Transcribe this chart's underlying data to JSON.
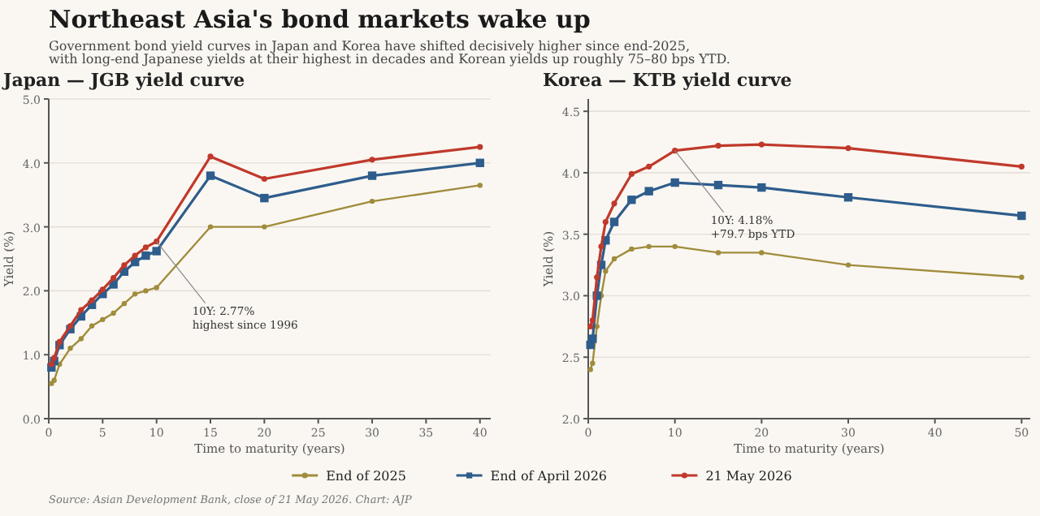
{
  "chart_data": [
    {
      "type": "other",
      "title": "Northeast Asia's bond markets wake up",
      "subtitle": "Government bond yield curves in Japan and Korea have shifted decisively higher since end-2025,\nwith long-end Japanese yields at their highest in decades and Korean yields up roughly 75–80 bps YTD.",
      "annotations": [
        "Source: Asian Development Bank, close of 21 May 2026.   Chart: AJP"
      ]
    },
    {
      "type": "line",
      "title": "Japan — JGB yield curve",
      "xlabel": "Time to maturity (years)",
      "ylabel": "Yield (%)",
      "x": [
        0.25,
        0.5,
        1,
        2,
        3,
        4,
        5,
        6,
        7,
        8,
        9,
        10,
        15,
        20,
        30,
        40
      ],
      "xlim": [
        0,
        41
      ],
      "xticks": [
        0,
        5,
        10,
        15,
        20,
        25,
        30,
        35,
        40
      ],
      "ylim": [
        0,
        5
      ],
      "yticks": [
        {
          "value": 0,
          "label": "0.0"
        },
        {
          "value": 1,
          "label": "1.0"
        },
        {
          "value": 2,
          "label": "2.0"
        },
        {
          "value": 3,
          "label": "3.0"
        },
        {
          "value": 4,
          "label": "4.0"
        },
        {
          "value": 5,
          "label": "5.0"
        }
      ],
      "grid": "y",
      "legend": "bottom",
      "annotations": [
        {
          "text": "10Y: 2.77%\nhighest since 1996",
          "x": 10,
          "y": 2.77
        }
      ],
      "series": [
        {
          "name": "End of 2025",
          "color": "#a08c3c",
          "marker": "circle",
          "values": [
            0.55,
            0.6,
            0.85,
            1.1,
            1.25,
            1.45,
            1.55,
            1.65,
            1.8,
            1.95,
            2.0,
            2.05,
            3.0,
            3.0,
            3.4,
            3.65
          ]
        },
        {
          "name": "End of April 2026",
          "color": "#2e5d8c",
          "marker": "square",
          "values": [
            0.8,
            0.9,
            1.15,
            1.4,
            1.6,
            1.78,
            1.95,
            2.1,
            2.3,
            2.45,
            2.55,
            2.62,
            3.8,
            3.45,
            3.8,
            4.0
          ]
        },
        {
          "name": "21 May 2026",
          "color": "#c0392b",
          "marker": "circle",
          "values": [
            0.85,
            0.95,
            1.2,
            1.45,
            1.7,
            1.85,
            2.02,
            2.2,
            2.4,
            2.55,
            2.68,
            2.77,
            4.1,
            3.75,
            4.05,
            4.25
          ]
        }
      ]
    },
    {
      "type": "line",
      "title": "Korea — KTB yield curve",
      "xlabel": "Time to maturity (years)",
      "ylabel": "Yield (%)",
      "x": [
        0.25,
        0.5,
        1,
        1.5,
        2,
        3,
        5,
        7,
        10,
        15,
        20,
        30,
        50
      ],
      "xlim": [
        0,
        51
      ],
      "xticks": [
        0,
        10,
        20,
        30,
        40,
        50
      ],
      "ylim": [
        2,
        4.6
      ],
      "yticks": [
        {
          "value": 2,
          "label": "2.0"
        },
        {
          "value": 2.5,
          "label": "2.5"
        },
        {
          "value": 3,
          "label": "3.0"
        },
        {
          "value": 3.5,
          "label": "3.5"
        },
        {
          "value": 4,
          "label": "4.0"
        },
        {
          "value": 4.5,
          "label": "4.5"
        }
      ],
      "grid": "y",
      "annotations": [
        {
          "text": "10Y: 4.18%\n+79.7 bps YTD",
          "x": 10,
          "y": 4.18
        }
      ],
      "series": [
        {
          "color": "#a08c3c",
          "marker": "circle",
          "values": [
            2.4,
            2.45,
            2.75,
            3.0,
            3.2,
            3.3,
            3.38,
            3.4,
            3.4,
            3.35,
            3.35,
            3.25,
            3.15
          ]
        },
        {
          "color": "#2e5d8c",
          "marker": "square",
          "values": [
            2.6,
            2.65,
            3.0,
            3.25,
            3.45,
            3.6,
            3.78,
            3.85,
            3.92,
            3.9,
            3.88,
            3.8,
            3.65
          ]
        },
        {
          "color": "#c0392b",
          "marker": "circle",
          "values": [
            2.75,
            2.8,
            3.15,
            3.4,
            3.6,
            3.75,
            3.99,
            4.05,
            4.18,
            4.22,
            4.23,
            4.2,
            4.05
          ]
        }
      ]
    }
  ]
}
